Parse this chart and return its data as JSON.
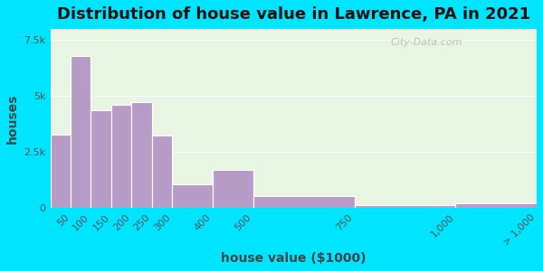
{
  "title": "Distribution of house value in Lawrence, PA in 2021",
  "xlabel": "house value ($1000)",
  "ylabel": "houses",
  "bar_color": "#b89cc8",
  "bar_edge_color": "#ffffff",
  "background_outer": "#00e5ff",
  "background_inner": "#e8f5e2",
  "watermark": "City-Data.com",
  "title_fontsize": 13,
  "axis_label_fontsize": 10,
  "tick_fontsize": 8,
  "bin_edges": [
    0,
    50,
    100,
    150,
    200,
    250,
    300,
    400,
    500,
    750,
    1000,
    1200
  ],
  "values": [
    3300,
    6800,
    4350,
    4600,
    4750,
    3250,
    1050,
    1700,
    550,
    120,
    200
  ],
  "tick_positions": [
    50,
    100,
    150,
    200,
    250,
    300,
    400,
    500,
    750,
    1000,
    1200
  ],
  "tick_labels": [
    "50",
    "100",
    "150",
    "200",
    "250",
    "300",
    "400",
    "500",
    "750",
    "1,000",
    "> 1,000"
  ],
  "ylim": [
    0,
    8000
  ],
  "yticks": [
    0,
    2500,
    5000,
    7500
  ],
  "ytick_labels": [
    "0",
    "2.5k",
    "5k",
    "7.5k"
  ]
}
